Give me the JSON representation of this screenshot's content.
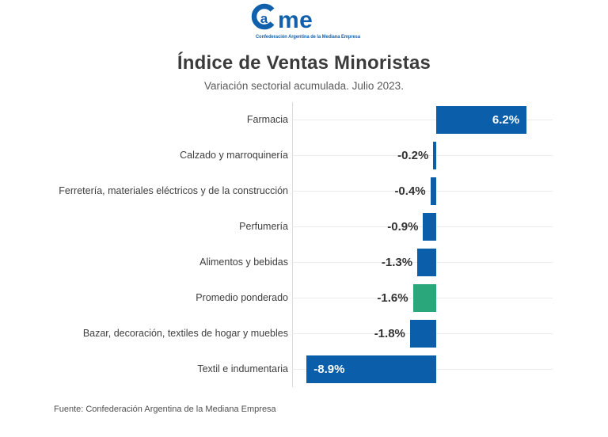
{
  "logo": {
    "letter_a": "a",
    "letters_rest": "me",
    "tagline": "Confederación Argentina de la Mediana Empresa",
    "color": "#1160ac"
  },
  "header": {
    "title": "Índice de Ventas Minoristas",
    "subtitle": "Variación sectorial acumulada. Julio 2023."
  },
  "chart_data": {
    "type": "bar",
    "orientation": "horizontal",
    "title": "Índice de Ventas Minoristas",
    "subtitle": "Variación sectorial acumulada. Julio 2023.",
    "unit": "%",
    "xlim": [
      -9.9,
      8.0
    ],
    "grid": "horizontal-row-centers",
    "legend": "none",
    "categories": [
      "Farmacia",
      "Calzado y marroquinería",
      "Ferretería, materiales eléctricos y de la construcción",
      "Perfumería",
      "Alimentos y bebidas",
      "Promedio ponderado",
      "Bazar, decoración, textiles de hogar y muebles",
      "Textil e indumentaria"
    ],
    "values": [
      6.2,
      -0.2,
      -0.4,
      -0.9,
      -1.3,
      -1.6,
      -1.8,
      -8.9
    ],
    "value_labels": [
      "6.2%",
      "-0.2%",
      "-0.4%",
      "-0.9%",
      "-1.3%",
      "-1.6%",
      "-1.8%",
      "-8.9%"
    ],
    "label_inside": [
      true,
      false,
      false,
      false,
      false,
      false,
      false,
      true
    ],
    "bar_colors": [
      "#0b5ea9",
      "#0b5ea9",
      "#0b5ea9",
      "#0b5ea9",
      "#0b5ea9",
      "#2aa77b",
      "#0b5ea9",
      "#0b5ea9"
    ],
    "colors": {
      "default_bar": "#0b5ea9",
      "weighted_average_bar": "#2aa77b"
    }
  },
  "footer": {
    "source": "Fuente: Confederación Argentina de la Mediana Empresa"
  }
}
